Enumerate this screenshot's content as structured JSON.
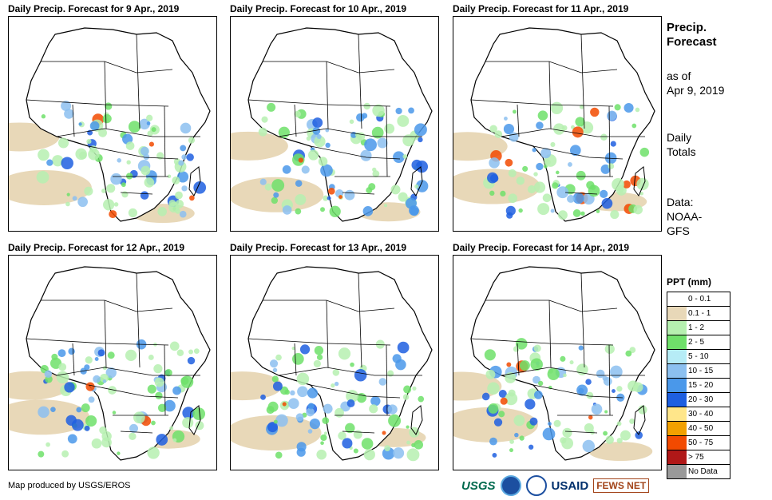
{
  "panels": [
    {
      "title": "Daily Precip. Forecast for 9 Apr., 2019"
    },
    {
      "title": "Daily Precip. Forecast for 10 Apr., 2019"
    },
    {
      "title": "Daily Precip. Forecast for 11 Apr., 2019"
    },
    {
      "title": "Daily Precip. Forecast for 12 Apr., 2019"
    },
    {
      "title": "Daily Precip. Forecast for 13 Apr., 2019"
    },
    {
      "title": "Daily Precip. Forecast for 14 Apr., 2019"
    }
  ],
  "side": {
    "title_line1": "Precip.",
    "title_line2": "Forecast",
    "asof_line1": "as of",
    "asof_line2": "Apr 9, 2019",
    "daily_line1": "Daily",
    "daily_line2": "Totals",
    "data_line1": "Data:",
    "data_line2": "NOAA-",
    "data_line3": "GFS"
  },
  "legend": {
    "title": "PPT (mm)",
    "items": [
      {
        "label": "0 - 0.1",
        "color": "#ffffff"
      },
      {
        "label": "0.1 - 1",
        "color": "#e8d8b8"
      },
      {
        "label": "1 - 2",
        "color": "#b6f0b0"
      },
      {
        "label": "2 - 5",
        "color": "#6fe06a"
      },
      {
        "label": "5 - 10",
        "color": "#b6ecf6"
      },
      {
        "label": "10 - 15",
        "color": "#8cc0f0"
      },
      {
        "label": "15 - 20",
        "color": "#4a98ea"
      },
      {
        "label": "20 - 30",
        "color": "#1e5fe0"
      },
      {
        "label": "30 - 40",
        "color": "#ffe68a"
      },
      {
        "label": "40 - 50",
        "color": "#f2a100"
      },
      {
        "label": "50 - 75",
        "color": "#f24a00"
      },
      {
        "label": "> 75",
        "color": "#b01818"
      },
      {
        "label": "No Data",
        "color": "#999999"
      }
    ]
  },
  "footer": {
    "credit": "Map produced by USGS/EROS"
  },
  "logos": {
    "usgs": "USGS",
    "usaid": "USAID",
    "fews": "FEWS NET"
  }
}
